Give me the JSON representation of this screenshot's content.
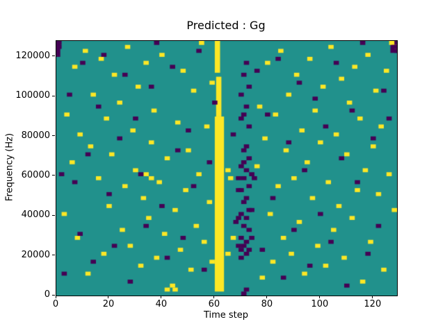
{
  "figure": {
    "title": "Predicted : Gg",
    "xlabel": "Time step",
    "ylabel": "Frequency (Hz)"
  },
  "chart_data": {
    "type": "heatmap",
    "title": "Predicted : Gg",
    "xlabel": "Time step",
    "ylabel": "Frequency (Hz)",
    "xlim": [
      0,
      129
    ],
    "ylim": [
      0,
      128000
    ],
    "x_ticks": [
      0,
      20,
      40,
      60,
      80,
      100,
      120
    ],
    "y_ticks": [
      0,
      20000,
      40000,
      60000,
      80000,
      100000,
      120000
    ],
    "grid": false,
    "legend": false,
    "colormap": "viridis",
    "colors": {
      "mid": "#21918c",
      "high": "#fde725",
      "low": "#440154"
    },
    "y_bin_hz": 2000,
    "point_width_steps": 2,
    "bands": [
      {
        "x0": 60,
        "x1": 63.5,
        "y0": 2000,
        "y1": 90000,
        "color": "high"
      },
      {
        "x0": 60.5,
        "x1": 62.5,
        "y0": 90000,
        "y1": 110000,
        "color": "high"
      },
      {
        "x0": 60,
        "x1": 62,
        "y0": 112000,
        "y1": 128000,
        "color": "high"
      },
      {
        "x0": 0,
        "x1": 1.5,
        "y0": 120000,
        "y1": 128000,
        "color": "low"
      },
      {
        "x0": 126.5,
        "x1": 129,
        "y0": 122000,
        "y1": 128000,
        "color": "low"
      }
    ],
    "points_high": [
      [
        2,
        20
      ],
      [
        3,
        45
      ],
      [
        5,
        33
      ],
      [
        6,
        57
      ],
      [
        7,
        14
      ],
      [
        8,
        40
      ],
      [
        10,
        61
      ],
      [
        11,
        5
      ],
      [
        12,
        37
      ],
      [
        13,
        50
      ],
      [
        15,
        29
      ],
      [
        16,
        59
      ],
      [
        17,
        10
      ],
      [
        18,
        44
      ],
      [
        19,
        22
      ],
      [
        20,
        35
      ],
      [
        21,
        55
      ],
      [
        23,
        48
      ],
      [
        24,
        16
      ],
      [
        25,
        27
      ],
      [
        26,
        62
      ],
      [
        27,
        12
      ],
      [
        28,
        41
      ],
      [
        29,
        31
      ],
      [
        30,
        52
      ],
      [
        31,
        7
      ],
      [
        32,
        24
      ],
      [
        33,
        58
      ],
      [
        33,
        30
      ],
      [
        34,
        19
      ],
      [
        35,
        38
      ],
      [
        35,
        29
      ],
      [
        36,
        46
      ],
      [
        37,
        9
      ],
      [
        38,
        28
      ],
      [
        39,
        60
      ],
      [
        40,
        15
      ],
      [
        41,
        1
      ],
      [
        41,
        34
      ],
      [
        43,
        2
      ],
      [
        44,
        1
      ],
      [
        44,
        21
      ],
      [
        45,
        43
      ],
      [
        46,
        11
      ],
      [
        47,
        56
      ],
      [
        48,
        26
      ],
      [
        49,
        36
      ],
      [
        50,
        6
      ],
      [
        51,
        51
      ],
      [
        52,
        17
      ],
      [
        53,
        30
      ],
      [
        54,
        63
      ],
      [
        55,
        13
      ],
      [
        56,
        42
      ],
      [
        57,
        23
      ],
      [
        58,
        53
      ],
      [
        58,
        8
      ],
      [
        64,
        10
      ],
      [
        65,
        29
      ],
      [
        64,
        31
      ],
      [
        66,
        14
      ],
      [
        75,
        32
      ],
      [
        76,
        47
      ],
      [
        77,
        4
      ],
      [
        78,
        39
      ],
      [
        79,
        58
      ],
      [
        80,
        20
      ],
      [
        81,
        8
      ],
      [
        82,
        45
      ],
      [
        83,
        27
      ],
      [
        84,
        61
      ],
      [
        85,
        14
      ],
      [
        86,
        36
      ],
      [
        87,
        50
      ],
      [
        88,
        10
      ],
      [
        89,
        29
      ],
      [
        90,
        55
      ],
      [
        91,
        18
      ],
      [
        92,
        41
      ],
      [
        93,
        5
      ],
      [
        94,
        33
      ],
      [
        95,
        59
      ],
      [
        96,
        24
      ],
      [
        97,
        46
      ],
      [
        98,
        12
      ],
      [
        99,
        38
      ],
      [
        100,
        52
      ],
      [
        101,
        7
      ],
      [
        102,
        28
      ],
      [
        103,
        62
      ],
      [
        104,
        16
      ],
      [
        105,
        40
      ],
      [
        106,
        22
      ],
      [
        107,
        54
      ],
      [
        108,
        9
      ],
      [
        109,
        35
      ],
      [
        110,
        48
      ],
      [
        111,
        19
      ],
      [
        112,
        57
      ],
      [
        113,
        26
      ],
      [
        114,
        44
      ],
      [
        115,
        3
      ],
      [
        116,
        31
      ],
      [
        117,
        60
      ],
      [
        118,
        13
      ],
      [
        119,
        37
      ],
      [
        120,
        51
      ],
      [
        121,
        25
      ],
      [
        122,
        42
      ],
      [
        123,
        6
      ],
      [
        124,
        56
      ],
      [
        125,
        30
      ],
      [
        126,
        63
      ],
      [
        127,
        21
      ],
      [
        128,
        62
      ]
    ],
    "points_low": [
      [
        0,
        63
      ],
      [
        0,
        62
      ],
      [
        1,
        30
      ],
      [
        2,
        5
      ],
      [
        4,
        50
      ],
      [
        6,
        28
      ],
      [
        8,
        15
      ],
      [
        9,
        58
      ],
      [
        11,
        35
      ],
      [
        13,
        8
      ],
      [
        15,
        47
      ],
      [
        17,
        60
      ],
      [
        19,
        25
      ],
      [
        21,
        12
      ],
      [
        23,
        39
      ],
      [
        25,
        55
      ],
      [
        27,
        3
      ],
      [
        29,
        44
      ],
      [
        31,
        30
      ],
      [
        33,
        17
      ],
      [
        35,
        52
      ],
      [
        37,
        63
      ],
      [
        39,
        22
      ],
      [
        41,
        9
      ],
      [
        43,
        57
      ],
      [
        45,
        36
      ],
      [
        47,
        14
      ],
      [
        49,
        41
      ],
      [
        51,
        27
      ],
      [
        53,
        61
      ],
      [
        55,
        6
      ],
      [
        57,
        33
      ],
      [
        59,
        48
      ],
      [
        66,
        40
      ],
      [
        67,
        18
      ],
      [
        74,
        29
      ],
      [
        75,
        56
      ],
      [
        77,
        11
      ],
      [
        79,
        45
      ],
      [
        81,
        24
      ],
      [
        83,
        59
      ],
      [
        85,
        4
      ],
      [
        87,
        38
      ],
      [
        89,
        16
      ],
      [
        91,
        53
      ],
      [
        93,
        31
      ],
      [
        95,
        7
      ],
      [
        97,
        49
      ],
      [
        99,
        20
      ],
      [
        101,
        42
      ],
      [
        103,
        13
      ],
      [
        105,
        58
      ],
      [
        107,
        34
      ],
      [
        109,
        2
      ],
      [
        111,
        46
      ],
      [
        113,
        28
      ],
      [
        115,
        63
      ],
      [
        117,
        10
      ],
      [
        119,
        39
      ],
      [
        121,
        17
      ],
      [
        123,
        51
      ],
      [
        125,
        44
      ],
      [
        127,
        62
      ],
      [
        128,
        61
      ],
      [
        70,
        0
      ],
      [
        71,
        1
      ],
      [
        69,
        11
      ],
      [
        70,
        12
      ],
      [
        71,
        13
      ],
      [
        69,
        14
      ],
      [
        72,
        16
      ],
      [
        70,
        17
      ],
      [
        71,
        19
      ],
      [
        69,
        20
      ],
      [
        72,
        21
      ],
      [
        70,
        23
      ],
      [
        71,
        24
      ],
      [
        69,
        26
      ],
      [
        72,
        27
      ],
      [
        70,
        29
      ],
      [
        71,
        31
      ],
      [
        69,
        32
      ],
      [
        72,
        34
      ],
      [
        70,
        36
      ],
      [
        71,
        37
      ],
      [
        69,
        9
      ],
      [
        68,
        12
      ],
      [
        73,
        14
      ],
      [
        68,
        19
      ],
      [
        73,
        21
      ],
      [
        68,
        26
      ],
      [
        73,
        30
      ],
      [
        68,
        29
      ],
      [
        72,
        11
      ],
      [
        70,
        33
      ],
      [
        71,
        10
      ],
      [
        70,
        45
      ],
      [
        71,
        47
      ],
      [
        69,
        50
      ],
      [
        72,
        52
      ],
      [
        70,
        55
      ],
      [
        71,
        58
      ],
      [
        69,
        44
      ],
      [
        72,
        42
      ]
    ]
  }
}
